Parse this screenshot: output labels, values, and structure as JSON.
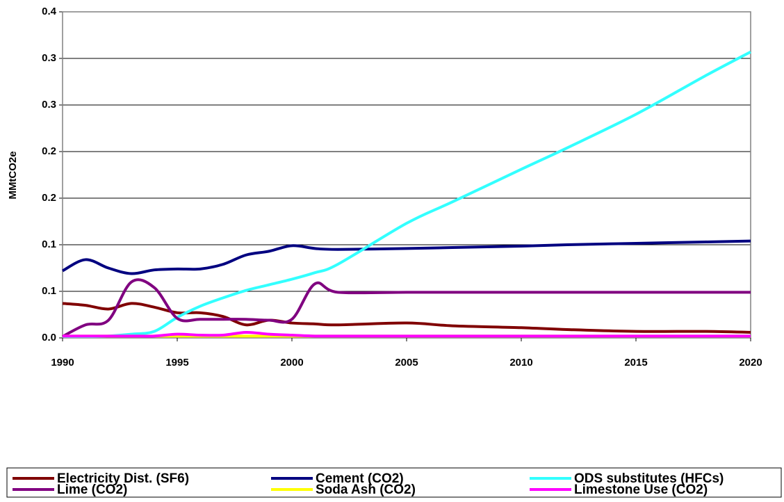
{
  "chart_data": {
    "type": "line",
    "y_label": "MMtCO2e",
    "x": [
      1990,
      1991,
      1992,
      1993,
      1994,
      1995,
      1996,
      1997,
      1998,
      1999,
      2000,
      2001,
      2002,
      2005,
      2007,
      2010,
      2012,
      2015,
      2018,
      2020
    ],
    "xlim": [
      1990,
      2020
    ],
    "xticks": [
      1990,
      1995,
      2000,
      2005,
      2010,
      2015,
      2020
    ],
    "ylim": [
      0,
      0.35
    ],
    "yticks": [
      {
        "value": 0,
        "label": "0.0"
      },
      {
        "value": 0.05,
        "label": "0.1"
      },
      {
        "value": 0.1,
        "label": "0.1"
      },
      {
        "value": 0.15,
        "label": "0.2"
      },
      {
        "value": 0.2,
        "label": "0.2"
      },
      {
        "value": 0.25,
        "label": "0.3"
      },
      {
        "value": 0.3,
        "label": "0.3"
      },
      {
        "value": 0.35,
        "label": "0.4"
      }
    ],
    "grid": true,
    "legend": "bottom",
    "series": [
      {
        "name": "Electricity Dist. (SF6)",
        "color": "#800000",
        "values": [
          0.037,
          0.035,
          0.031,
          0.037,
          0.033,
          0.027,
          0.027,
          0.023,
          0.014,
          0.019,
          0.016,
          0.015,
          0.014,
          0.016,
          0.013,
          0.011,
          0.009,
          0.007,
          0.007,
          0.006
        ]
      },
      {
        "name": "Cement (CO2)",
        "color": "#000080",
        "values": [
          0.072,
          0.084,
          0.075,
          0.069,
          0.073,
          0.074,
          0.074,
          0.079,
          0.089,
          0.093,
          0.099,
          0.096,
          0.095,
          0.096,
          0.097,
          0.0985,
          0.1,
          0.1015,
          0.103,
          0.104
        ]
      },
      {
        "name": "ODS substitutes (HFCs)",
        "color": "#33ffff",
        "values": [
          0.0015,
          0.0015,
          0.002,
          0.004,
          0.007,
          0.022,
          0.034,
          0.043,
          0.051,
          0.057,
          0.063,
          0.07,
          0.079,
          0.123,
          0.146,
          0.181,
          0.204,
          0.24,
          0.281,
          0.307
        ]
      },
      {
        "name": "Lime (CO2)",
        "color": "#800080",
        "values": [
          0.0015,
          0.014,
          0.019,
          0.06,
          0.054,
          0.021,
          0.02,
          0.02,
          0.02,
          0.019,
          0.02,
          0.058,
          0.049,
          0.049,
          0.049,
          0.049,
          0.049,
          0.049,
          0.049,
          0.049
        ]
      },
      {
        "name": "Soda Ash (CO2)",
        "color": "#ffff00",
        "values": [
          0.002,
          0.002,
          0.002,
          0.002,
          0.002,
          0.002,
          0.002,
          0.002,
          0.002,
          0.002,
          0.002,
          0.002,
          0.002,
          0.002,
          0.002,
          0.002,
          0.002,
          0.002,
          0.002,
          0.002
        ]
      },
      {
        "name": "Limestone Use (CO2)",
        "color": "#ff00ff",
        "values": [
          0.002,
          0.002,
          0.002,
          0.002,
          0.002,
          0.004,
          0.003,
          0.003,
          0.006,
          0.004,
          0.003,
          0.002,
          0.002,
          0.002,
          0.002,
          0.002,
          0.002,
          0.002,
          0.002,
          0.002
        ]
      }
    ]
  }
}
